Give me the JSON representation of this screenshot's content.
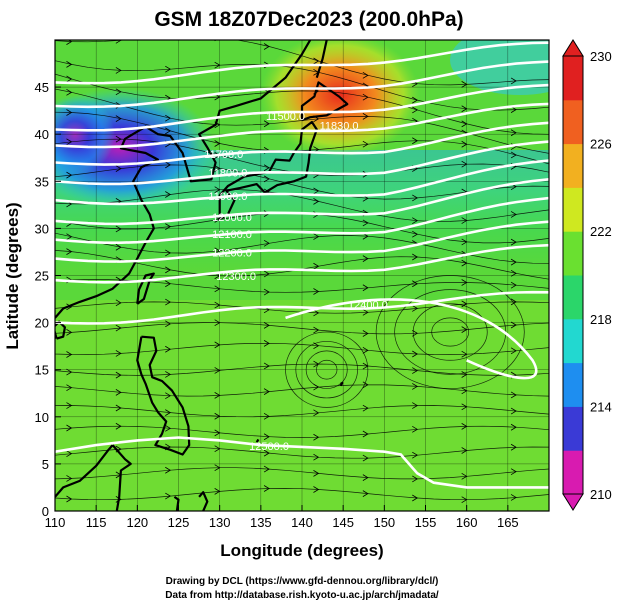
{
  "title": "GSM 18Z07Dec2023 (200.0hPa)",
  "x_axis": {
    "label": "Longitude (degrees)",
    "min": 110,
    "max": 170,
    "ticks": [
      "110",
      "115",
      "120",
      "125",
      "130",
      "135",
      "140",
      "145",
      "150",
      "155",
      "160",
      "165"
    ]
  },
  "y_axis": {
    "label": "Latitude  (degrees)",
    "min": 0,
    "max": 50,
    "ticks": [
      "0",
      "5",
      "10",
      "15",
      "20",
      "25",
      "30",
      "35",
      "40",
      "45"
    ]
  },
  "colorbar": {
    "min": 210,
    "max": 230,
    "labels": [
      "230",
      "226",
      "222",
      "218",
      "214",
      "210"
    ],
    "colors": [
      "#d81bb0",
      "#3a3ad6",
      "#1e8ef0",
      "#22d8d0",
      "#2bd66a",
      "#6ae030",
      "#cfe820",
      "#f2b020",
      "#f06020",
      "#e02020"
    ]
  },
  "contour_labels": [
    {
      "text": "11500.0",
      "lon": 138,
      "lat": 41.5
    },
    {
      "text": "11830.0",
      "lon": 144.5,
      "lat": 40.5
    },
    {
      "text": "11700.0",
      "lon": 130.5,
      "lat": 37.5
    },
    {
      "text": "11800.0",
      "lon": 131,
      "lat": 35.5
    },
    {
      "text": "11900.0",
      "lon": 131,
      "lat": 33
    },
    {
      "text": "12000.0",
      "lon": 131.5,
      "lat": 30.8
    },
    {
      "text": "12100.0",
      "lon": 131.5,
      "lat": 29
    },
    {
      "text": "12200.0",
      "lon": 131.5,
      "lat": 27
    },
    {
      "text": "12300.0",
      "lon": 132,
      "lat": 24.5
    },
    {
      "text": "12400.0",
      "lon": 148,
      "lat": 21.5
    },
    {
      "text": "12500.0",
      "lon": 136,
      "lat": 6.5
    }
  ],
  "legend_units": "",
  "footer": {
    "line1": "Drawing by DCL (https://www.gfd-dennou.org/library/dcl/)",
    "line2": "Data from http://database.rish.kyoto-u.ac.jp/arch/jmadata/"
  }
}
